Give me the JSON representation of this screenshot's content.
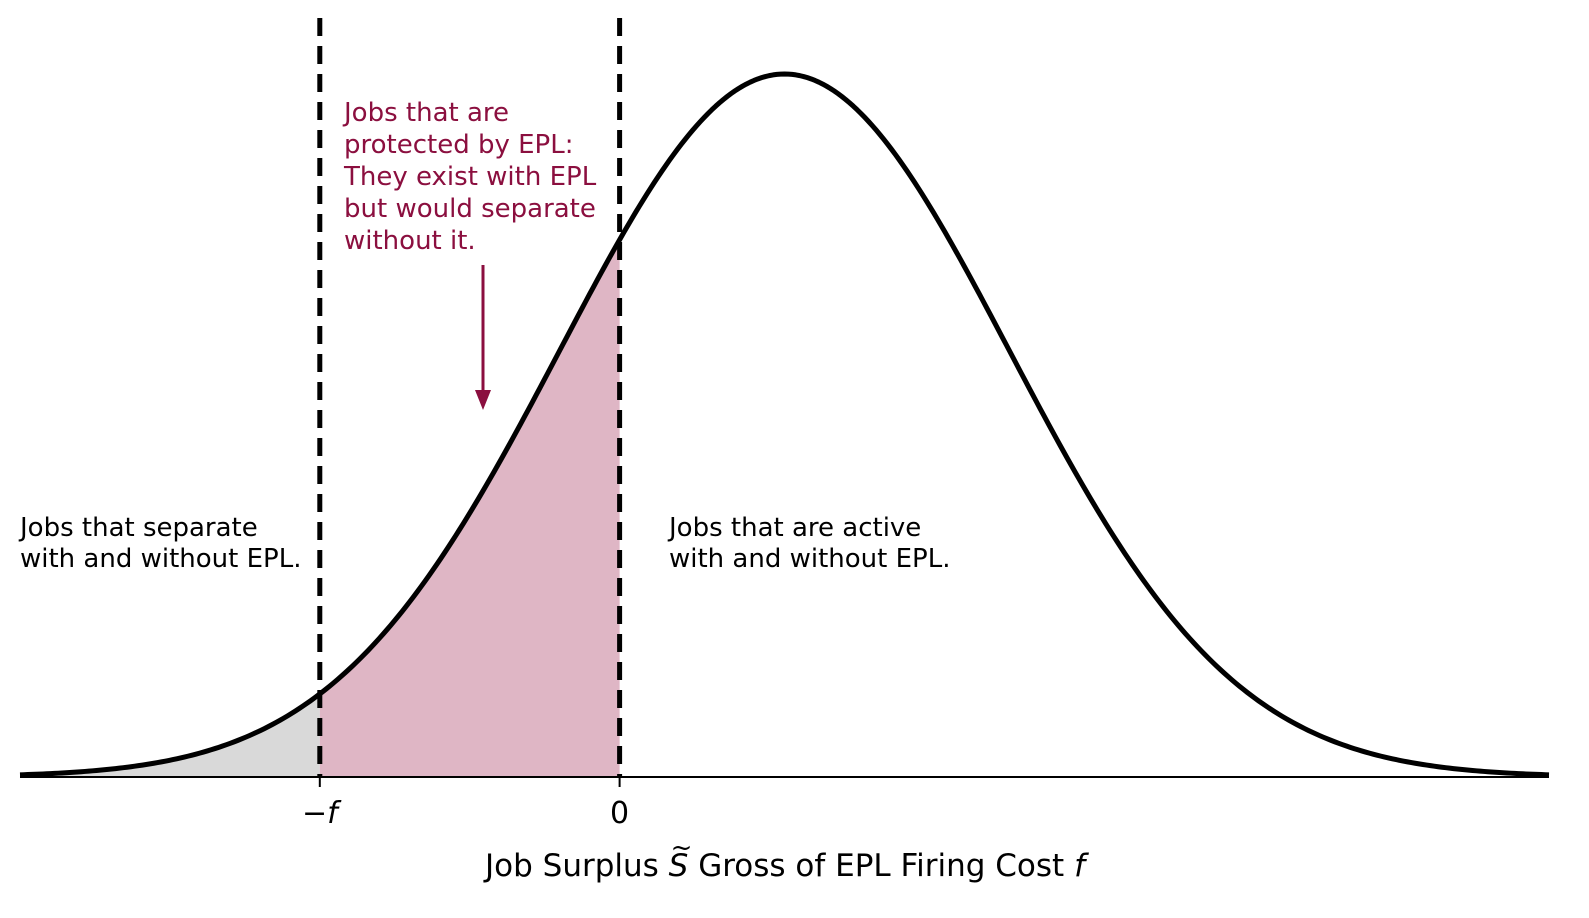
{
  "chart_data": {
    "type": "area",
    "title": "",
    "xlabel": {
      "prefix": "Job Surplus ",
      "symbol": "S",
      "symbol_accent": "~",
      "middle": " Gross of EPL Firing Cost ",
      "suffix": "f"
    },
    "ylabel": "",
    "grid": false,
    "y_axis_shown": false,
    "x_ticks": [
      {
        "label": "−f",
        "value": -2.0,
        "italic": true
      },
      {
        "label": "0",
        "value": 0.0,
        "italic": false
      }
    ],
    "distribution": {
      "kind": "normal",
      "mean": 1.1,
      "sd": 1.5,
      "x_range": [
        -4.0,
        6.2
      ]
    },
    "regions": [
      {
        "from": -4.0,
        "to": -2.0,
        "color": "#d9d9d9"
      },
      {
        "from": -2.0,
        "to": 0.0,
        "color": "#dfb6c5"
      }
    ],
    "vlines": [
      {
        "x": -2.0,
        "style": "dashed"
      },
      {
        "x": 0.0,
        "style": "dashed"
      }
    ],
    "annotations": [
      {
        "id": "separate",
        "lines": [
          "Jobs that separate",
          "with and without EPL."
        ],
        "color": "#000000"
      },
      {
        "id": "protected",
        "lines": [
          "Jobs that are",
          "protected by EPL:",
          "They exist with EPL",
          "but would separate",
          "without it."
        ],
        "color": "#8b0f3f",
        "arrow": true
      },
      {
        "id": "active",
        "lines": [
          "Jobs that are active",
          "with and without EPL."
        ],
        "color": "#000000"
      }
    ],
    "colors": {
      "curve": "#000000",
      "accent": "#8b0f3f"
    }
  }
}
